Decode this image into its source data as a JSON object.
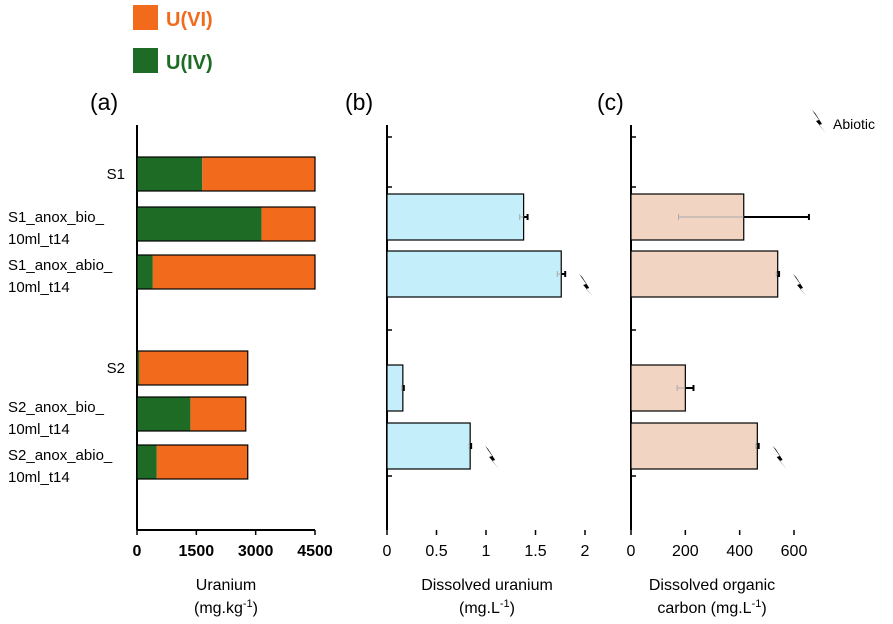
{
  "colors": {
    "u_vi": "#f26b1d",
    "u_iv": "#1e6b26",
    "dissolved_uranium": "#c4eefa",
    "doc": "#f2d4c2",
    "axis": "#000000"
  },
  "legend": [
    {
      "label": "U(VI)",
      "color": "#f26b1d"
    },
    {
      "label": "U(IV)",
      "color": "#1e6b26"
    }
  ],
  "abiotic_legend": {
    "label": "Abiotic",
    "icon": "lightning-bolt-icon"
  },
  "categories": [
    {
      "lines": [
        "S1"
      ]
    },
    {
      "lines": [
        "S1_anox_bio_",
        "10ml_t14"
      ]
    },
    {
      "lines": [
        "S1_anox_abio_",
        "10ml_t14"
      ]
    },
    {
      "lines": [
        "S2"
      ]
    },
    {
      "lines": [
        "S2_anox_bio_",
        "10ml_t14"
      ]
    },
    {
      "lines": [
        "S2_anox_abio_",
        "10ml_t14"
      ]
    }
  ],
  "chart_data": [
    {
      "type": "bar",
      "orientation": "horizontal",
      "stacked": true,
      "panel": "(a)",
      "xlabel": [
        "Uranium",
        "(mg.kg-1)"
      ],
      "xlim": [
        0,
        4500
      ],
      "xticks": [
        "0",
        "1500",
        "3000",
        "4500"
      ],
      "categories": [
        "S1",
        "S1_anox_bio_10ml_t14",
        "S1_anox_abio_10ml_t14",
        "S2",
        "S2_anox_bio_10ml_t14",
        "S2_anox_abio_10ml_t14"
      ],
      "series": [
        {
          "name": "U(IV)",
          "values": [
            1650,
            3150,
            400,
            60,
            1350,
            500
          ]
        },
        {
          "name": "U(VI)",
          "values": [
            2850,
            1350,
            4100,
            2740,
            1400,
            2300
          ]
        }
      ]
    },
    {
      "type": "bar",
      "orientation": "horizontal",
      "panel": "(b)",
      "xlabel": [
        "Dissolved uranium",
        "(mg.L-1)"
      ],
      "xlim": [
        0,
        2
      ],
      "xticks": [
        "0",
        "0.5",
        "1",
        "1.5",
        "2"
      ],
      "categories": [
        "S1_anox_bio_10ml_t14",
        "S1_anox_abio_10ml_t14",
        "S2_anox_bio_10ml_t14",
        "S2_anox_abio_10ml_t14"
      ],
      "values": [
        1.38,
        1.76,
        0.16,
        0.84
      ],
      "errors": [
        0.04,
        0.04,
        0.01,
        0.01
      ],
      "abiotic": [
        false,
        true,
        false,
        true
      ]
    },
    {
      "type": "bar",
      "orientation": "horizontal",
      "panel": "(c)",
      "xlabel": [
        "Dissolved organic",
        "carbon (mg.L-1)"
      ],
      "xlim": [
        0,
        600
      ],
      "xticks": [
        "0",
        "200",
        "400",
        "600"
      ],
      "categories": [
        "S1_anox_bio_10ml_t14",
        "S1_anox_abio_10ml_t14",
        "S2_anox_bio_10ml_t14",
        "S2_anox_abio_10ml_t14"
      ],
      "values": [
        415,
        540,
        200,
        465
      ],
      "errors": [
        240,
        5,
        30,
        5
      ],
      "abiotic": [
        false,
        true,
        false,
        true
      ]
    }
  ]
}
